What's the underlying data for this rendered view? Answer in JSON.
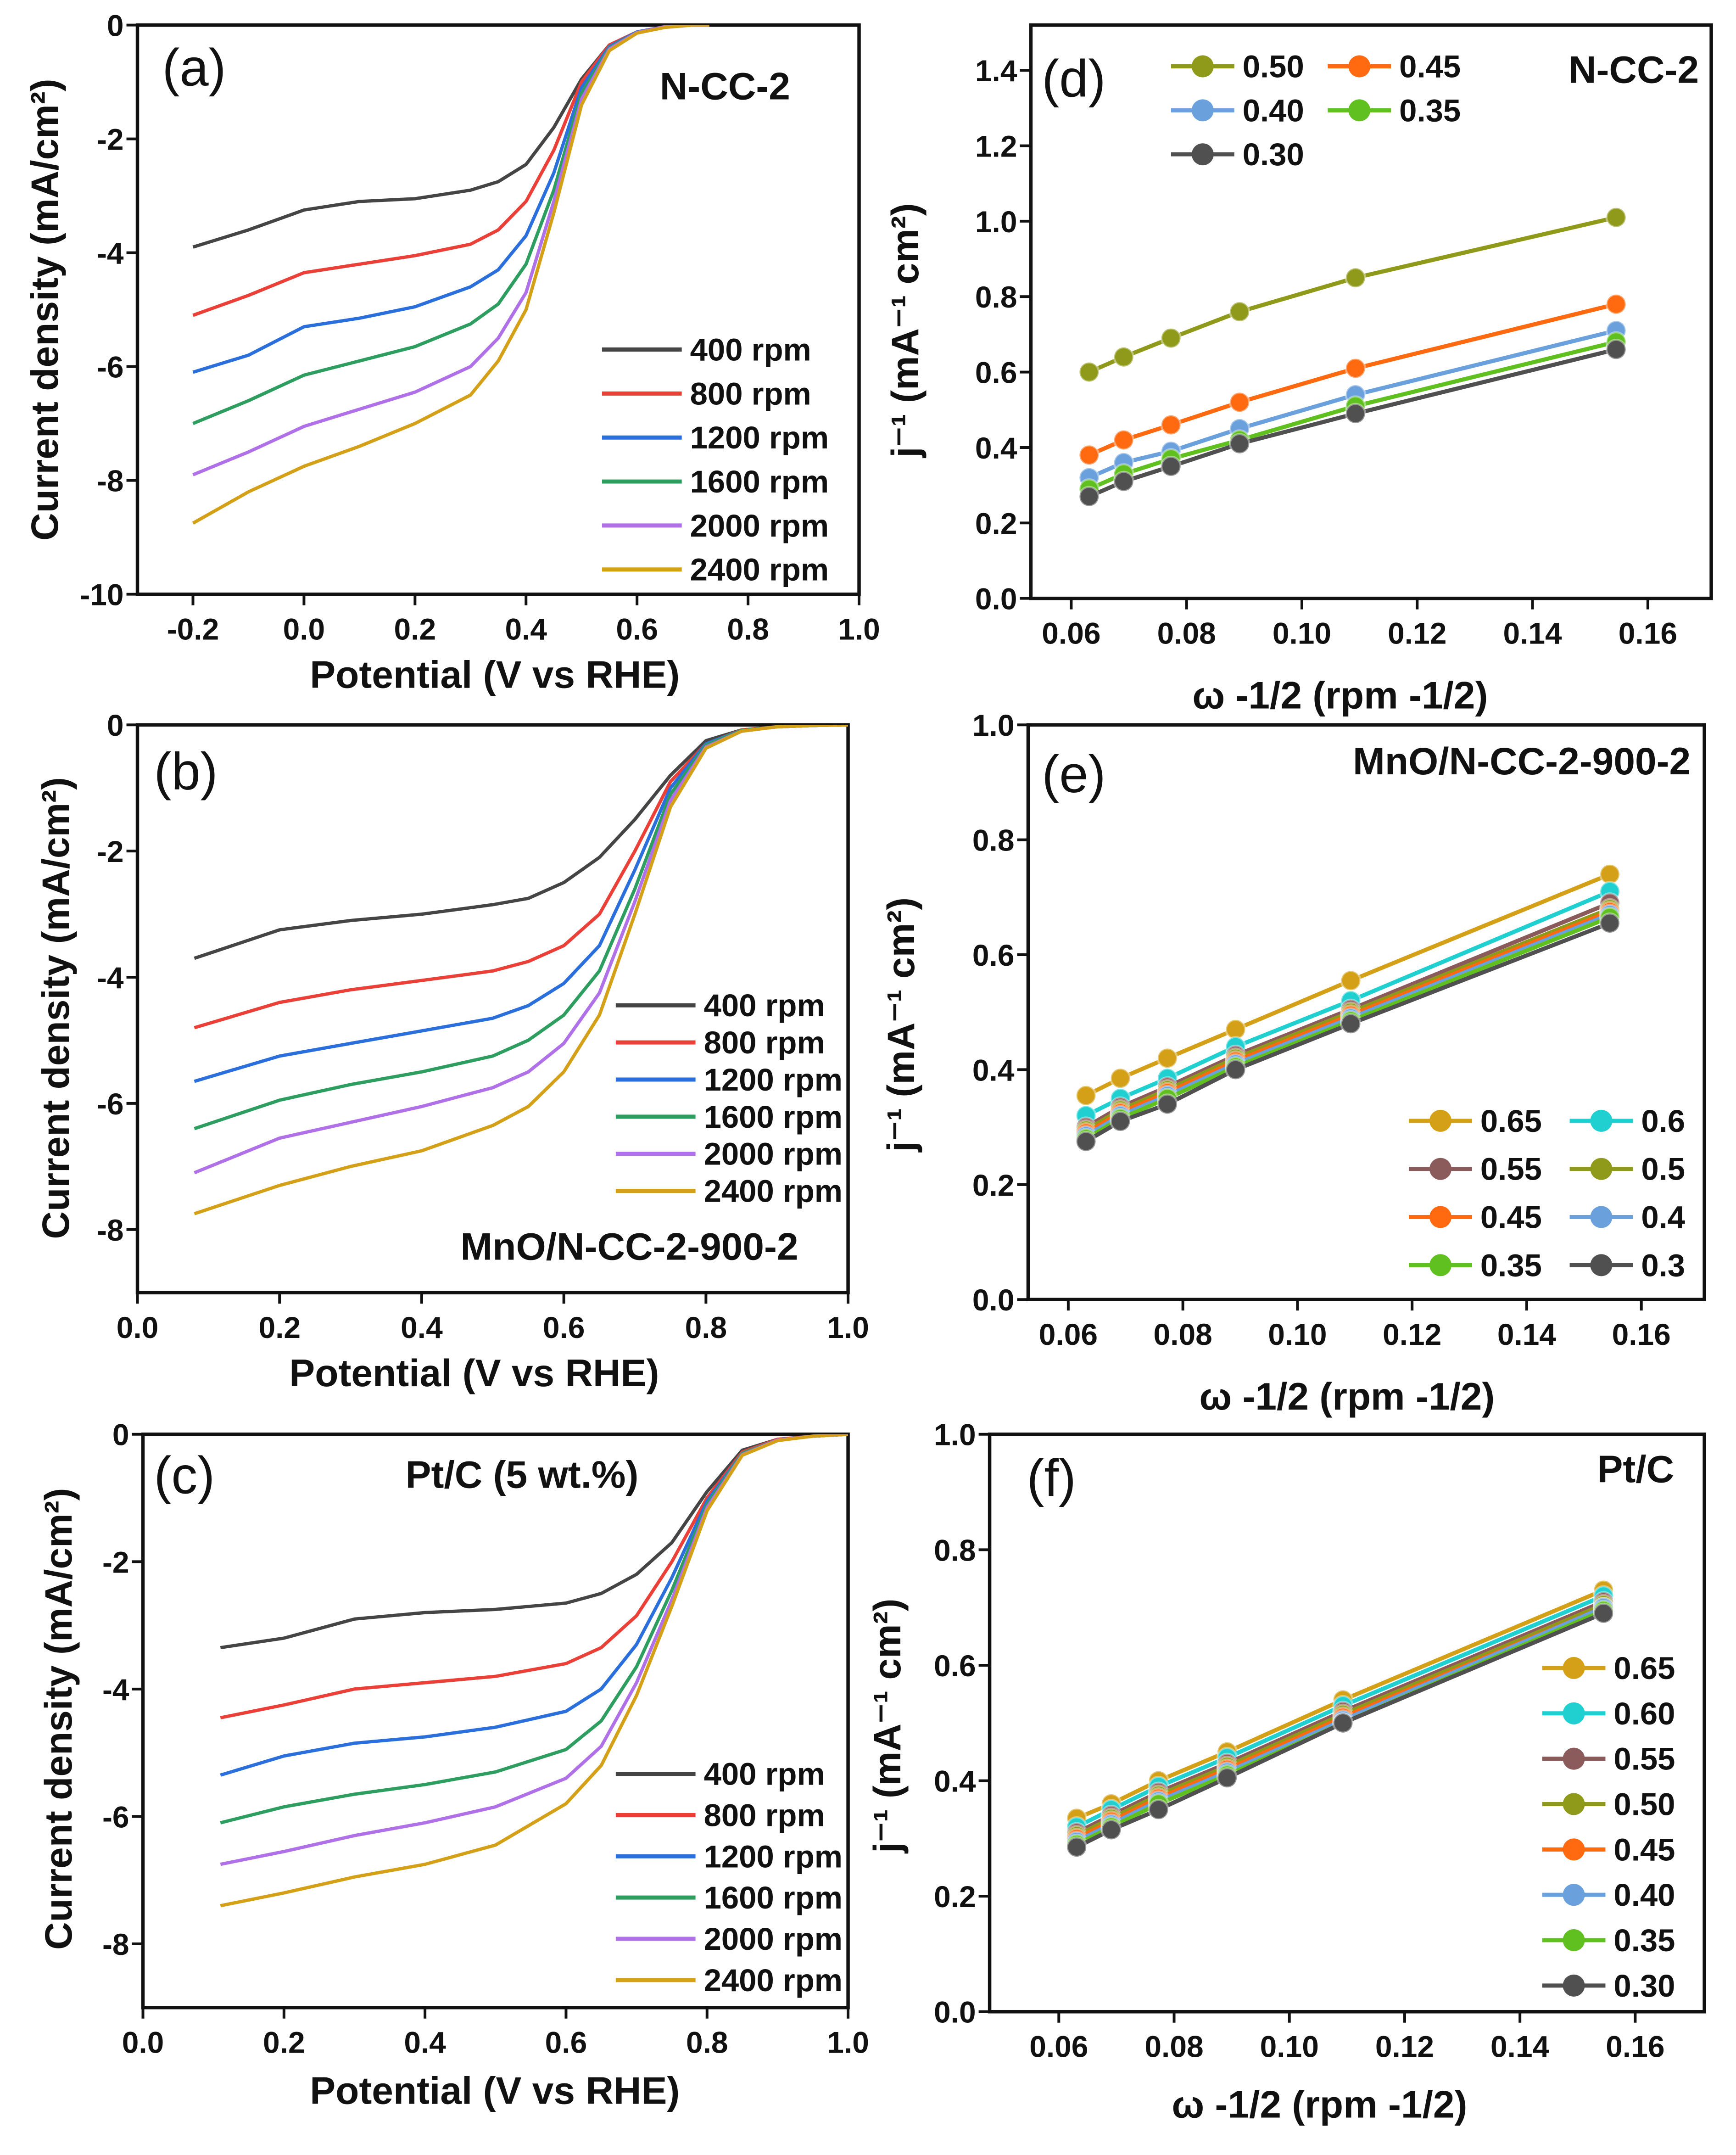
{
  "chart_data": [
    {
      "panel": "(a)",
      "type": "line",
      "annotation": "N-CC-2",
      "xlabel": "Potential (V vs RHE)",
      "ylabel": "Current density (mA/cm²)",
      "xlim": [
        -0.3,
        1.0
      ],
      "ylim": [
        -10,
        0
      ],
      "xticks": [
        -0.2,
        0.0,
        0.2,
        0.4,
        0.6,
        0.8,
        1.0
      ],
      "xtick_labels": [
        "-0.2",
        "0.0",
        "0.2",
        "0.4",
        "0.6",
        "0.8",
        "1.0"
      ],
      "yticks": [
        0,
        -2,
        -4,
        -6,
        -8,
        -10
      ],
      "ytick_labels": [
        "0",
        "-2",
        "-4",
        "-6",
        "-8",
        "-10"
      ],
      "legend": "right",
      "x": [
        -0.2,
        -0.1,
        0,
        0.1,
        0.2,
        0.3,
        0.35,
        0.4,
        0.45,
        0.5,
        0.55,
        0.6,
        0.65,
        0.7,
        0.73
      ],
      "series": [
        {
          "name": "400 rpm",
          "color": "#454545",
          "values": [
            -3.9,
            -3.6,
            -3.25,
            -3.1,
            -3.05,
            -2.9,
            -2.75,
            -2.45,
            -1.8,
            -0.95,
            -0.35,
            -0.12,
            -0.03,
            0,
            0
          ]
        },
        {
          "name": "800 rpm",
          "color": "#ea4038",
          "values": [
            -5.1,
            -4.75,
            -4.35,
            -4.2,
            -4.05,
            -3.85,
            -3.6,
            -3.1,
            -2.2,
            -1.0,
            -0.35,
            -0.12,
            -0.03,
            0,
            0
          ]
        },
        {
          "name": "1200 rpm",
          "color": "#2a6fdc",
          "values": [
            -6.1,
            -5.8,
            -5.3,
            -5.15,
            -4.95,
            -4.6,
            -4.3,
            -3.7,
            -2.6,
            -1.1,
            -0.38,
            -0.12,
            -0.03,
            0,
            0
          ]
        },
        {
          "name": "1600 rpm",
          "color": "#2e9e60",
          "values": [
            -7.0,
            -6.6,
            -6.15,
            -5.9,
            -5.65,
            -5.25,
            -4.9,
            -4.2,
            -2.9,
            -1.2,
            -0.4,
            -0.13,
            -0.03,
            0,
            0
          ]
        },
        {
          "name": "2000 rpm",
          "color": "#b070e8",
          "values": [
            -7.9,
            -7.5,
            -7.05,
            -6.75,
            -6.45,
            -6.0,
            -5.5,
            -4.7,
            -3.1,
            -1.3,
            -0.42,
            -0.13,
            -0.03,
            0,
            0
          ]
        },
        {
          "name": "2400 rpm",
          "color": "#d4a017",
          "values": [
            -8.75,
            -8.2,
            -7.75,
            -7.4,
            -7.0,
            -6.5,
            -5.9,
            -5.0,
            -3.3,
            -1.4,
            -0.45,
            -0.14,
            -0.04,
            0,
            0
          ]
        }
      ]
    },
    {
      "panel": "(b)",
      "type": "line",
      "annotation": "MnO/N-CC-2-900-2",
      "xlabel": "Potential (V vs RHE)",
      "ylabel": "Current density (mA/cm²)",
      "xlim": [
        0.0,
        1.0
      ],
      "ylim": [
        -9,
        0
      ],
      "xticks": [
        0.0,
        0.2,
        0.4,
        0.6,
        0.8,
        1.0
      ],
      "xtick_labels": [
        "0.0",
        "0.2",
        "0.4",
        "0.6",
        "0.8",
        "1.0"
      ],
      "yticks": [
        0,
        -2,
        -4,
        -6,
        -8
      ],
      "ytick_labels": [
        "0",
        "-2",
        "-4",
        "-6",
        "-8"
      ],
      "legend": "right",
      "x": [
        0.08,
        0.2,
        0.3,
        0.4,
        0.5,
        0.55,
        0.6,
        0.65,
        0.7,
        0.75,
        0.8,
        0.85,
        0.9,
        0.95,
        1.0
      ],
      "series": [
        {
          "name": "400 rpm",
          "color": "#454545",
          "values": [
            -3.7,
            -3.25,
            -3.1,
            -3.0,
            -2.85,
            -2.75,
            -2.5,
            -2.1,
            -1.5,
            -0.8,
            -0.25,
            -0.08,
            -0.03,
            -0.01,
            0
          ]
        },
        {
          "name": "800 rpm",
          "color": "#ea4038",
          "values": [
            -4.8,
            -4.4,
            -4.2,
            -4.05,
            -3.9,
            -3.75,
            -3.5,
            -3.0,
            -2.0,
            -0.9,
            -0.3,
            -0.08,
            -0.03,
            -0.01,
            0
          ]
        },
        {
          "name": "1200 rpm",
          "color": "#2a6fdc",
          "values": [
            -5.65,
            -5.25,
            -5.05,
            -4.85,
            -4.65,
            -4.45,
            -4.1,
            -3.5,
            -2.3,
            -1.0,
            -0.3,
            -0.09,
            -0.03,
            -0.01,
            0
          ]
        },
        {
          "name": "1600 rpm",
          "color": "#2e9e60",
          "values": [
            -6.4,
            -5.95,
            -5.7,
            -5.5,
            -5.25,
            -5.0,
            -4.6,
            -3.9,
            -2.6,
            -1.1,
            -0.32,
            -0.09,
            -0.03,
            -0.01,
            0
          ]
        },
        {
          "name": "2000 rpm",
          "color": "#b070e8",
          "values": [
            -7.1,
            -6.55,
            -6.3,
            -6.05,
            -5.75,
            -5.5,
            -5.05,
            -4.25,
            -2.8,
            -1.2,
            -0.35,
            -0.1,
            -0.03,
            -0.01,
            0
          ]
        },
        {
          "name": "2400 rpm",
          "color": "#d4a017",
          "values": [
            -7.75,
            -7.3,
            -7.0,
            -6.75,
            -6.35,
            -6.05,
            -5.5,
            -4.6,
            -3.0,
            -1.3,
            -0.37,
            -0.1,
            -0.03,
            -0.01,
            0
          ]
        }
      ]
    },
    {
      "panel": "(c)",
      "type": "line",
      "annotation": "Pt/C (5 wt.%)",
      "xlabel": "Potential (V vs RHE)",
      "ylabel": "Current density (mA/cm²)",
      "xlim": [
        0.0,
        1.0
      ],
      "ylim": [
        -9,
        0
      ],
      "xticks": [
        0.0,
        0.2,
        0.4,
        0.6,
        0.8,
        1.0
      ],
      "xtick_labels": [
        "0.0",
        "0.2",
        "0.4",
        "0.6",
        "0.8",
        "1.0"
      ],
      "yticks": [
        0,
        -2,
        -4,
        -6,
        -8
      ],
      "ytick_labels": [
        "0",
        "-2",
        "-4",
        "-6",
        "-8"
      ],
      "legend": "right",
      "x": [
        0.11,
        0.2,
        0.3,
        0.4,
        0.5,
        0.6,
        0.65,
        0.7,
        0.75,
        0.8,
        0.85,
        0.9,
        0.95,
        1.0
      ],
      "series": [
        {
          "name": "400 rpm",
          "color": "#454545",
          "values": [
            -3.35,
            -3.2,
            -2.9,
            -2.8,
            -2.75,
            -2.65,
            -2.5,
            -2.2,
            -1.7,
            -0.9,
            -0.25,
            -0.08,
            -0.03,
            0
          ]
        },
        {
          "name": "800 rpm",
          "color": "#ea4038",
          "values": [
            -4.45,
            -4.25,
            -4.0,
            -3.9,
            -3.8,
            -3.6,
            -3.35,
            -2.85,
            -2.0,
            -1.0,
            -0.28,
            -0.08,
            -0.03,
            0
          ]
        },
        {
          "name": "1200 rpm",
          "color": "#2a6fdc",
          "values": [
            -5.35,
            -5.05,
            -4.85,
            -4.75,
            -4.6,
            -4.35,
            -4.0,
            -3.3,
            -2.25,
            -1.05,
            -0.3,
            -0.09,
            -0.03,
            0
          ]
        },
        {
          "name": "1600 rpm",
          "color": "#2e9e60",
          "values": [
            -6.1,
            -5.85,
            -5.65,
            -5.5,
            -5.3,
            -4.95,
            -4.5,
            -3.65,
            -2.45,
            -1.1,
            -0.3,
            -0.09,
            -0.03,
            0
          ]
        },
        {
          "name": "2000 rpm",
          "color": "#b070e8",
          "values": [
            -6.75,
            -6.55,
            -6.3,
            -6.1,
            -5.85,
            -5.4,
            -4.9,
            -3.9,
            -2.6,
            -1.15,
            -0.32,
            -0.09,
            -0.03,
            0
          ]
        },
        {
          "name": "2400 rpm",
          "color": "#d4a017",
          "values": [
            -7.4,
            -7.2,
            -6.95,
            -6.75,
            -6.45,
            -5.8,
            -5.2,
            -4.1,
            -2.7,
            -1.2,
            -0.33,
            -0.1,
            -0.03,
            0
          ]
        }
      ]
    },
    {
      "panel": "(d)",
      "type": "line",
      "markers": true,
      "annotation": "N-CC-2",
      "xlabel": "ω -1/2 (rpm -1/2)",
      "ylabel": "j⁻¹ (mA⁻¹ cm²)",
      "xlim": [
        0.053,
        0.171
      ],
      "ylim": [
        0,
        1.52
      ],
      "xticks": [
        0.06,
        0.08,
        0.1,
        0.12,
        0.14,
        0.16
      ],
      "xtick_labels": [
        "0.06",
        "0.08",
        "0.10",
        "0.12",
        "0.14",
        "0.16"
      ],
      "yticks": [
        0,
        0.2,
        0.4,
        0.6,
        0.8,
        1.0,
        1.2,
        1.4
      ],
      "ytick_labels": [
        "0.0",
        "0.2",
        "0.4",
        "0.6",
        "0.8",
        "1.0",
        "1.2",
        "1.4"
      ],
      "legend": "top-left, 2 columns",
      "x": [
        0.0631,
        0.0691,
        0.0773,
        0.0892,
        0.1093,
        0.1545
      ],
      "series": [
        {
          "name": "0.50",
          "color": "#8f9a1a",
          "values": [
            0.6,
            0.64,
            0.69,
            0.76,
            0.85,
            1.01
          ]
        },
        {
          "name": "0.45",
          "color": "#ff6a10",
          "values": [
            0.38,
            0.42,
            0.46,
            0.52,
            0.61,
            0.78
          ]
        },
        {
          "name": "0.40",
          "color": "#6aa0dc",
          "values": [
            0.32,
            0.36,
            0.39,
            0.45,
            0.54,
            0.71
          ]
        },
        {
          "name": "0.35",
          "color": "#60c020",
          "values": [
            0.29,
            0.33,
            0.37,
            0.42,
            0.51,
            0.68
          ]
        },
        {
          "name": "0.30",
          "color": "#505050",
          "values": [
            0.27,
            0.31,
            0.35,
            0.41,
            0.49,
            0.66
          ]
        }
      ]
    },
    {
      "panel": "(e)",
      "type": "line",
      "markers": true,
      "annotation": "MnO/N-CC-2-900-2",
      "xlabel": "ω -1/2 (rpm -1/2)",
      "ylabel": "j⁻¹ (mA⁻¹ cm²)",
      "xlim": [
        0.053,
        0.171
      ],
      "ylim": [
        0,
        1.0
      ],
      "xticks": [
        0.06,
        0.08,
        0.1,
        0.12,
        0.14,
        0.16
      ],
      "xtick_labels": [
        "0.06",
        "0.08",
        "0.10",
        "0.12",
        "0.14",
        "0.16"
      ],
      "yticks": [
        0,
        0.2,
        0.4,
        0.6,
        0.8,
        1.0
      ],
      "ytick_labels": [
        "0.0",
        "0.2",
        "0.4",
        "0.6",
        "0.8",
        "1.0"
      ],
      "legend": "bottom-right, 2 columns",
      "x": [
        0.0631,
        0.0691,
        0.0773,
        0.0892,
        0.1093,
        0.1545
      ],
      "series": [
        {
          "name": "0.65",
          "color": "#d4a017",
          "values": [
            0.355,
            0.385,
            0.42,
            0.47,
            0.555,
            0.74
          ]
        },
        {
          "name": "0.6",
          "color": "#20cfd0",
          "values": [
            0.32,
            0.35,
            0.385,
            0.44,
            0.52,
            0.71
          ]
        },
        {
          "name": "0.55",
          "color": "#8b5a5a",
          "values": [
            0.3,
            0.335,
            0.37,
            0.425,
            0.505,
            0.69
          ]
        },
        {
          "name": "0.5",
          "color": "#8f9a1a",
          "values": [
            0.295,
            0.33,
            0.365,
            0.42,
            0.5,
            0.68
          ]
        },
        {
          "name": "0.45",
          "color": "#ff6a10",
          "values": [
            0.29,
            0.325,
            0.36,
            0.415,
            0.495,
            0.675
          ]
        },
        {
          "name": "0.4",
          "color": "#6aa0dc",
          "values": [
            0.285,
            0.32,
            0.355,
            0.41,
            0.49,
            0.67
          ]
        },
        {
          "name": "0.35",
          "color": "#60c020",
          "values": [
            0.28,
            0.315,
            0.35,
            0.405,
            0.485,
            0.665
          ]
        },
        {
          "name": "0.3",
          "color": "#505050",
          "values": [
            0.275,
            0.31,
            0.34,
            0.4,
            0.48,
            0.655
          ]
        }
      ]
    },
    {
      "panel": "(f)",
      "type": "line",
      "markers": true,
      "annotation": "Pt/C",
      "xlabel": "ω -1/2 (rpm -1/2)",
      "ylabel": "j⁻¹ (mA⁻¹ cm²)",
      "xlim": [
        0.048,
        0.172
      ],
      "ylim": [
        0,
        1.0
      ],
      "xticks": [
        0.06,
        0.08,
        0.1,
        0.12,
        0.14,
        0.16
      ],
      "xtick_labels": [
        "0.06",
        "0.08",
        "0.10",
        "0.12",
        "0.14",
        "0.16"
      ],
      "yticks": [
        0,
        0.2,
        0.4,
        0.6,
        0.8,
        1.0
      ],
      "ytick_labels": [
        "0.0",
        "0.2",
        "0.4",
        "0.6",
        "0.8",
        "1.0"
      ],
      "legend": "right, 1 column",
      "x": [
        0.0631,
        0.0691,
        0.0773,
        0.0892,
        0.1093,
        0.1545
      ],
      "series": [
        {
          "name": "0.65",
          "color": "#d4a017",
          "values": [
            0.335,
            0.36,
            0.4,
            0.45,
            0.54,
            0.73
          ]
        },
        {
          "name": "0.60",
          "color": "#20cfd0",
          "values": [
            0.32,
            0.35,
            0.39,
            0.44,
            0.53,
            0.72
          ]
        },
        {
          "name": "0.55",
          "color": "#8b5a5a",
          "values": [
            0.31,
            0.34,
            0.38,
            0.43,
            0.52,
            0.71
          ]
        },
        {
          "name": "0.50",
          "color": "#8f9a1a",
          "values": [
            0.305,
            0.335,
            0.375,
            0.425,
            0.515,
            0.705
          ]
        },
        {
          "name": "0.45",
          "color": "#ff6a10",
          "values": [
            0.3,
            0.33,
            0.37,
            0.42,
            0.51,
            0.7
          ]
        },
        {
          "name": "0.40",
          "color": "#6aa0dc",
          "values": [
            0.295,
            0.325,
            0.365,
            0.415,
            0.505,
            0.7
          ]
        },
        {
          "name": "0.35",
          "color": "#60c020",
          "values": [
            0.29,
            0.32,
            0.36,
            0.41,
            0.5,
            0.695
          ]
        },
        {
          "name": "0.30",
          "color": "#505050",
          "values": [
            0.285,
            0.315,
            0.35,
            0.405,
            0.5,
            0.69
          ]
        }
      ]
    }
  ]
}
